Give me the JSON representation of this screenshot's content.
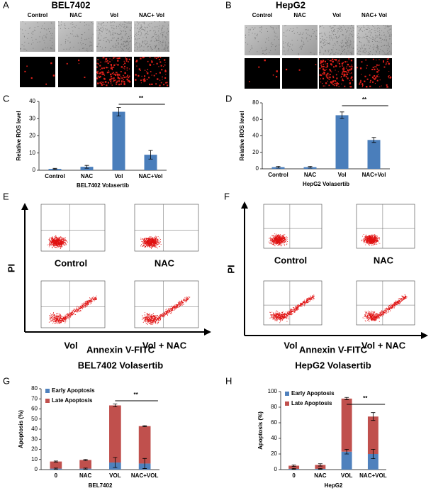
{
  "panel_labels": [
    "A",
    "B",
    "C",
    "D",
    "E",
    "F",
    "G",
    "H"
  ],
  "microscopy": [
    {
      "title": "BEL7402",
      "labels": [
        "Control",
        "NAC",
        "Vol",
        "NAC+ Vol"
      ]
    },
    {
      "title": "HepG2",
      "labels": [
        "Control",
        "NAC",
        "Vol",
        "NAC+ Vol"
      ]
    }
  ],
  "flow": [
    {
      "y_label": "PI",
      "x_label": "Annexin V-FITC",
      "title": "BEL7402 Volasertib",
      "labels": [
        "Control",
        "NAC",
        "Vol",
        "Vol + NAC"
      ]
    },
    {
      "y_label": "PI",
      "x_label": "Annexin V-FITC",
      "title": "HepG2 Volasertib",
      "labels": [
        "Control",
        "NAC",
        "Vol",
        "Vol + NAC"
      ]
    }
  ],
  "chart_data": [
    {
      "type": "bar",
      "y_label": "Relative ROS level",
      "x_label": "BEL7402 Volasertib",
      "categories": [
        "Control",
        "NAC",
        "Vol",
        "NAC+Vol"
      ],
      "values": [
        0.8,
        2,
        34,
        9
      ],
      "errors": [
        0.3,
        0.8,
        2.5,
        2.5
      ],
      "color": "#4a7ebb",
      "ylim": [
        0,
        40
      ],
      "yticks": [
        0,
        10,
        20,
        30,
        40
      ],
      "annotation": "**"
    },
    {
      "type": "bar",
      "y_label": "Relative ROS level",
      "x_label": "HepG2 Volasertib",
      "categories": [
        "Control",
        "NAC",
        "Vol",
        "NAC+Vol"
      ],
      "values": [
        2,
        2,
        65,
        35
      ],
      "errors": [
        1,
        1,
        4,
        3
      ],
      "color": "#4a7ebb",
      "ylim": [
        0,
        80
      ],
      "yticks": [
        0,
        20,
        40,
        60,
        80
      ],
      "annotation": "**"
    },
    {
      "type": "stacked_bar",
      "y_label": "Apoptosis (%)",
      "x_label": "BEL7402",
      "categories": [
        "0",
        "NAC",
        "VOL",
        "NAC+VOL"
      ],
      "series": [
        {
          "name": "Early Apoptosis",
          "color": "#4f81bd",
          "values": [
            1,
            1,
            7,
            6
          ],
          "errors": [
            0.5,
            0.5,
            5,
            5
          ]
        },
        {
          "name": "Late Apoptosis",
          "color": "#c0504d",
          "values": [
            7,
            8.5,
            56.5,
            37
          ],
          "errors": [
            0.5,
            0.5,
            1.5,
            0.5
          ]
        }
      ],
      "ylim": [
        0,
        80
      ],
      "yticks": [
        0,
        10,
        20,
        30,
        40,
        50,
        60,
        70,
        80
      ],
      "annotation": "**",
      "legend": "upper left"
    },
    {
      "type": "stacked_bar",
      "y_label": "Apoptosis (%)",
      "x_label": "HepG2",
      "categories": [
        "0",
        "NAC",
        "VOL",
        "NAC+VOL"
      ],
      "series": [
        {
          "name": "Early Apoptosis",
          "color": "#4f81bd",
          "values": [
            1,
            1,
            23,
            20
          ],
          "errors": [
            0.5,
            0.5,
            3,
            6
          ]
        },
        {
          "name": "Late Apoptosis",
          "color": "#c0504d",
          "values": [
            4,
            5,
            68,
            48
          ],
          "errors": [
            1,
            1.5,
            1.5,
            5
          ]
        }
      ],
      "ylim": [
        0,
        100
      ],
      "yticks": [
        0,
        20,
        40,
        60,
        80,
        100
      ],
      "annotation": "**",
      "legend": "upper left"
    }
  ]
}
